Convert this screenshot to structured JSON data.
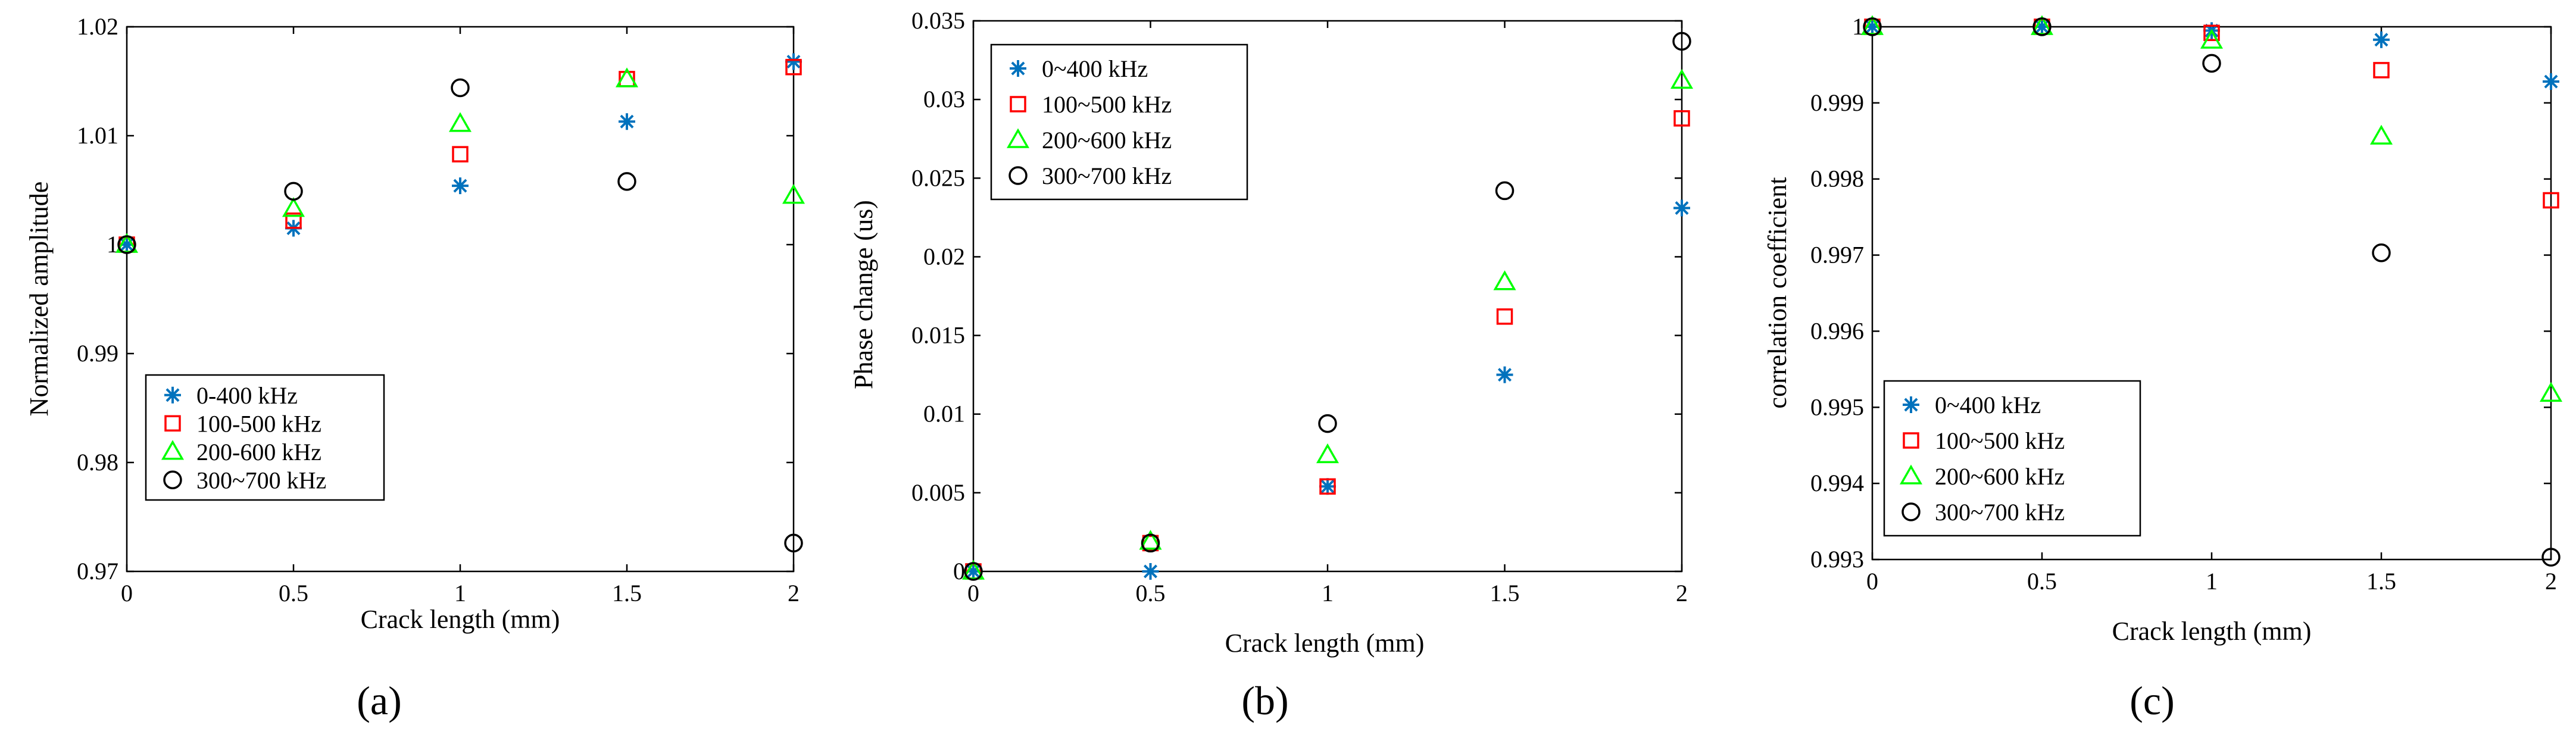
{
  "figure": {
    "panels": [
      "a",
      "b",
      "c"
    ]
  },
  "colors": {
    "series_0": "#0072BD",
    "series_1": "#FF0000",
    "series_2": "#00FF00",
    "series_3": "#000000"
  },
  "chart_data": [
    {
      "type": "scatter",
      "caption": "(a)",
      "title": "",
      "xlabel": "Crack length (mm)",
      "ylabel": "Normalized amplitude",
      "xlim": [
        0,
        2
      ],
      "ylim": [
        0.97,
        1.02
      ],
      "xticks": [
        "0",
        "0.5",
        "1",
        "1.5",
        "2"
      ],
      "yticks": [
        "0.97",
        "0.98",
        "0.99",
        "1",
        "1.01",
        "1.02"
      ],
      "legend_position": "bottom-left",
      "x": [
        0,
        0.5,
        1,
        1.5,
        2
      ],
      "series": [
        {
          "name": "0-400 kHz",
          "marker": "asterisk",
          "values": [
            1.0,
            1.0015,
            1.0054,
            1.0113,
            1.0168
          ]
        },
        {
          "name": "100-500 kHz",
          "marker": "square",
          "values": [
            1.0,
            1.0022,
            1.0083,
            1.0152,
            1.0163
          ]
        },
        {
          "name": "200-600 kHz",
          "marker": "triangle",
          "values": [
            1.0,
            1.0033,
            1.0111,
            1.0152,
            1.0045
          ]
        },
        {
          "name": "300~700 kHz",
          "marker": "circle",
          "values": [
            1.0,
            1.0049,
            1.0144,
            1.0058,
            0.9726
          ]
        }
      ]
    },
    {
      "type": "scatter",
      "caption": "(b)",
      "title": "",
      "xlabel": "Crack length (mm)",
      "ylabel": "Phase change (us)",
      "xlim": [
        0,
        2
      ],
      "ylim": [
        0,
        0.035
      ],
      "xticks": [
        "0",
        "0.5",
        "1",
        "1.5",
        "2"
      ],
      "yticks": [
        "0",
        "0.005",
        "0.01",
        "0.015",
        "0.02",
        "0.025",
        "0.03",
        "0.035"
      ],
      "legend_position": "top-left",
      "x": [
        0,
        0.5,
        1,
        1.5,
        2
      ],
      "series": [
        {
          "name": "0~400 kHz",
          "marker": "asterisk",
          "values": [
            0,
            0,
            0.0054,
            0.0125,
            0.0231
          ]
        },
        {
          "name": "100~500 kHz",
          "marker": "square",
          "values": [
            0,
            0.0018,
            0.0054,
            0.0162,
            0.0288
          ]
        },
        {
          "name": "200~600 kHz",
          "marker": "triangle",
          "values": [
            0,
            0.0019,
            0.0074,
            0.0184,
            0.0312
          ]
        },
        {
          "name": "300~700 kHz",
          "marker": "circle",
          "values": [
            0,
            0.0018,
            0.0094,
            0.0242,
            0.0337
          ]
        }
      ]
    },
    {
      "type": "scatter",
      "caption": "(c)",
      "title": "",
      "xlabel": "Crack length (mm)",
      "ylabel": "correlation coefficient",
      "xlim": [
        0,
        2
      ],
      "ylim": [
        0.993,
        1
      ],
      "xticks": [
        "0",
        "0.5",
        "1",
        "1.5",
        "2"
      ],
      "yticks": [
        "0.993",
        "0.994",
        "0.995",
        "0.996",
        "0.997",
        "0.998",
        "0.999",
        "1"
      ],
      "legend_position": "bottom-left",
      "x": [
        0,
        0.5,
        1,
        1.5,
        2
      ],
      "series": [
        {
          "name": "0~400 kHz",
          "marker": "asterisk",
          "values": [
            1.0,
            1.0,
            0.99995,
            0.99983,
            0.99928
          ]
        },
        {
          "name": "100~500 kHz",
          "marker": "square",
          "values": [
            1.0,
            1.0,
            0.99992,
            0.99943,
            0.99772
          ]
        },
        {
          "name": "200~600 kHz",
          "marker": "triangle",
          "values": [
            1.0,
            1.0,
            0.99982,
            0.99856,
            0.99518
          ]
        },
        {
          "name": "300~700 kHz",
          "marker": "circle",
          "values": [
            1.0,
            1.0,
            0.99952,
            0.99703,
            0.99303
          ]
        }
      ]
    }
  ]
}
